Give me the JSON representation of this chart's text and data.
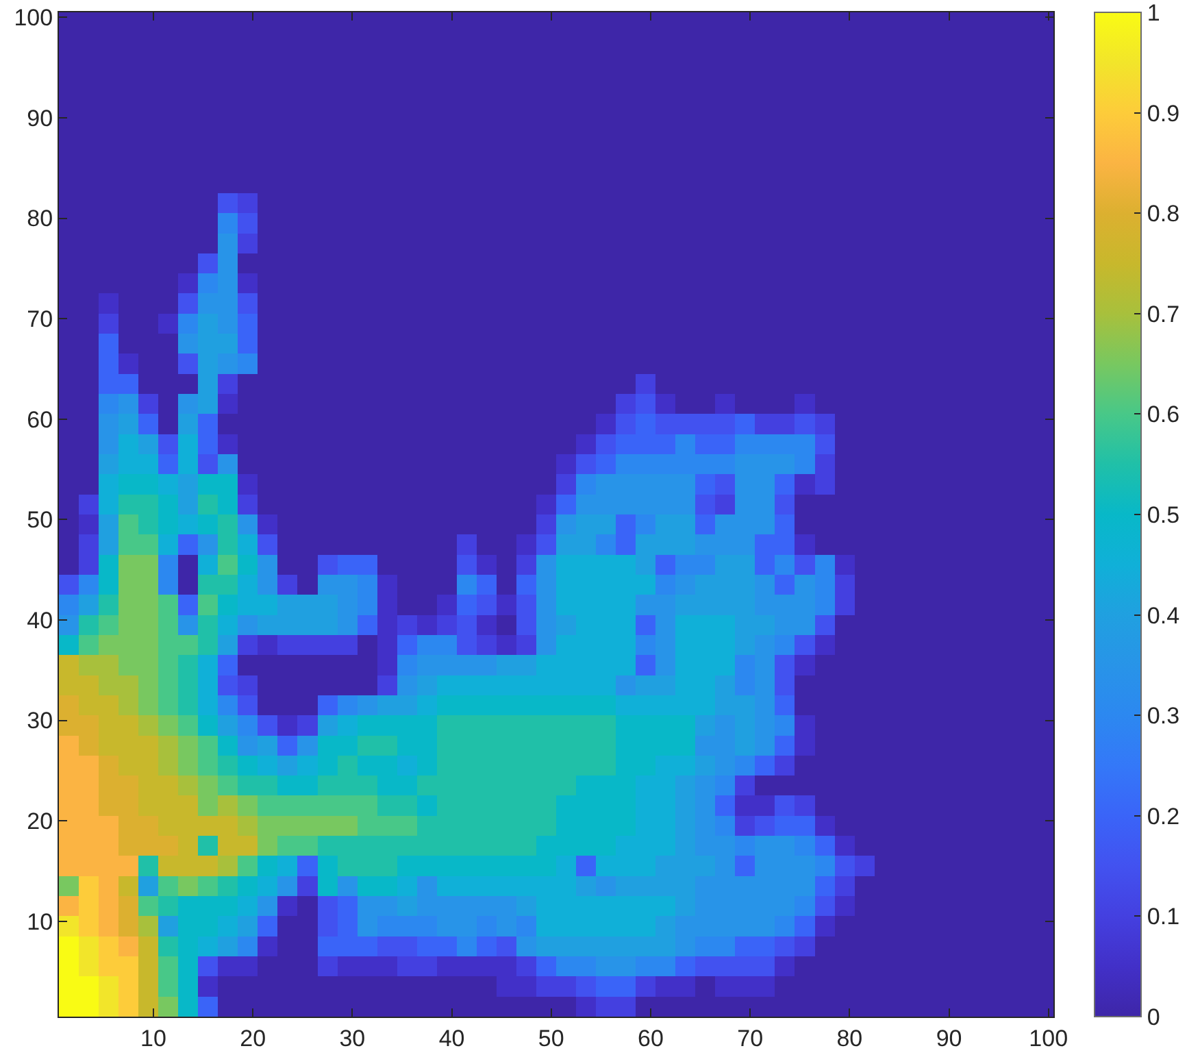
{
  "chart_data": {
    "type": "heatmap",
    "xlim": [
      0.5,
      100.5
    ],
    "ylim": [
      0.5,
      100.5
    ],
    "xticks": [
      10,
      20,
      30,
      40,
      50,
      60,
      70,
      80,
      90,
      100
    ],
    "yticks": [
      10,
      20,
      30,
      40,
      50,
      60,
      70,
      80,
      90,
      100
    ],
    "clim": [
      0,
      1
    ],
    "cticks": [
      0,
      0.1,
      0.2,
      0.3,
      0.4,
      0.5,
      0.6,
      0.7,
      0.8,
      0.9,
      1
    ],
    "cells": [
      [
        0,
        0,
        0,
        0,
        0,
        0,
        0,
        0,
        0,
        0,
        0,
        0,
        0,
        0,
        0,
        0,
        0,
        0,
        0,
        0,
        0,
        0,
        0,
        0,
        0,
        0,
        0,
        0,
        0,
        0,
        0,
        0,
        0,
        0,
        0,
        0,
        0,
        0,
        0,
        0,
        0,
        0,
        0,
        0,
        0,
        0,
        0,
        0,
        0,
        0
      ],
      [
        0,
        0,
        0,
        0,
        0,
        0,
        0,
        0,
        0,
        0,
        0,
        0,
        0,
        0,
        0,
        0,
        0,
        0,
        0,
        0,
        0,
        0,
        0,
        0,
        0,
        0,
        0,
        0,
        0,
        0,
        0,
        0,
        0,
        0,
        0,
        0,
        0,
        0,
        0,
        0,
        0,
        0,
        0,
        0,
        0,
        0,
        0,
        0,
        0,
        0
      ],
      [
        0,
        0,
        0,
        0,
        0,
        0,
        0,
        0,
        0,
        0,
        0,
        0,
        0,
        0,
        0,
        0,
        0,
        0,
        0,
        0,
        0,
        0,
        0,
        0,
        0,
        0,
        0,
        0,
        0,
        0,
        0,
        0,
        0,
        0,
        0,
        0,
        0,
        0,
        0,
        0,
        0,
        0,
        0,
        0,
        0,
        0,
        0,
        0,
        0,
        0
      ],
      [
        0,
        0,
        0,
        0,
        0,
        0,
        0,
        0,
        0,
        0,
        0,
        0,
        0,
        0,
        0,
        0,
        0,
        0,
        0,
        0,
        0,
        0,
        0,
        0,
        0,
        0,
        0,
        0,
        0,
        0,
        0,
        0,
        0,
        0,
        0,
        0,
        0,
        0,
        0,
        0,
        0,
        0,
        0,
        0,
        0,
        0,
        0,
        0,
        0,
        0
      ],
      [
        0,
        0,
        0,
        0,
        0,
        0,
        0,
        0,
        0,
        0,
        0,
        0,
        0,
        0,
        0,
        0,
        0,
        0,
        0,
        0,
        0,
        0,
        0,
        0,
        0,
        0,
        0,
        0,
        0,
        0,
        0,
        0,
        0,
        0,
        0,
        0,
        0,
        0,
        0,
        0,
        0,
        0,
        0,
        0,
        0,
        0,
        0,
        0,
        0,
        0
      ],
      [
        0,
        0,
        0,
        0,
        0,
        0,
        0,
        0,
        0,
        0,
        0,
        0,
        0,
        0,
        0,
        0,
        0,
        0,
        0,
        0,
        0,
        0,
        0,
        0,
        0,
        0,
        0,
        0,
        0,
        0,
        0,
        0,
        0,
        0,
        0,
        0,
        0,
        0,
        0,
        0,
        0,
        0,
        0,
        0,
        0,
        0,
        0,
        0,
        0,
        0
      ],
      [
        0,
        0,
        0,
        0,
        0,
        0,
        0,
        0,
        0,
        0,
        0,
        0,
        0,
        0,
        0,
        0,
        0,
        0,
        0,
        0,
        0,
        0,
        0,
        0,
        0,
        0,
        0,
        0,
        0,
        0,
        0,
        0,
        0,
        0,
        0,
        0,
        0,
        0,
        0,
        0,
        0,
        0,
        0,
        0,
        0,
        0,
        0,
        0,
        0,
        0
      ],
      [
        0,
        0,
        0,
        0,
        0,
        0,
        0,
        0,
        0,
        0,
        0,
        0,
        0,
        0,
        0,
        0,
        0,
        0,
        0,
        0,
        0,
        0,
        0,
        0,
        0,
        0,
        0,
        0,
        0,
        0,
        0,
        0,
        0,
        0,
        0,
        0,
        0,
        0,
        0,
        0,
        0,
        0,
        0,
        0,
        0,
        0,
        0,
        0,
        0,
        0
      ],
      [
        0,
        0,
        0,
        0,
        0,
        0,
        0,
        0,
        0,
        0,
        0,
        0,
        0,
        0,
        0,
        0,
        0,
        0,
        0,
        0,
        0,
        0,
        0,
        0,
        0,
        0,
        0,
        0,
        0,
        0,
        0,
        0,
        0,
        0,
        0,
        0,
        0,
        0,
        0,
        0,
        0,
        0,
        0,
        0,
        0,
        0,
        0,
        0,
        0,
        0
      ],
      [
        0,
        0,
        0,
        0,
        0,
        0,
        0,
        0,
        0.15,
        0.1,
        0,
        0,
        0,
        0,
        0,
        0,
        0,
        0,
        0,
        0,
        0,
        0,
        0,
        0,
        0,
        0,
        0,
        0,
        0,
        0,
        0,
        0,
        0,
        0,
        0,
        0,
        0,
        0,
        0,
        0,
        0,
        0,
        0,
        0,
        0,
        0,
        0,
        0,
        0,
        0
      ],
      [
        0,
        0,
        0,
        0,
        0,
        0,
        0,
        0,
        0.3,
        0.15,
        0,
        0,
        0,
        0,
        0,
        0,
        0,
        0,
        0,
        0,
        0,
        0,
        0,
        0,
        0,
        0,
        0,
        0,
        0,
        0,
        0,
        0,
        0,
        0,
        0,
        0,
        0,
        0,
        0,
        0,
        0,
        0,
        0,
        0,
        0,
        0,
        0,
        0,
        0,
        0
      ],
      [
        0,
        0,
        0,
        0,
        0,
        0,
        0,
        0,
        0.35,
        0.1,
        0,
        0,
        0,
        0,
        0,
        0,
        0,
        0,
        0,
        0,
        0,
        0,
        0,
        0,
        0,
        0,
        0,
        0,
        0,
        0,
        0,
        0,
        0,
        0,
        0,
        0,
        0,
        0,
        0,
        0,
        0,
        0,
        0,
        0,
        0,
        0,
        0,
        0,
        0,
        0
      ],
      [
        0,
        0,
        0,
        0,
        0,
        0,
        0,
        0.15,
        0.35,
        0,
        0,
        0,
        0,
        0,
        0,
        0,
        0,
        0,
        0,
        0,
        0,
        0,
        0,
        0,
        0,
        0,
        0,
        0,
        0,
        0,
        0,
        0,
        0,
        0,
        0,
        0,
        0,
        0,
        0,
        0,
        0,
        0,
        0,
        0,
        0,
        0,
        0,
        0,
        0,
        0
      ],
      [
        0,
        0,
        0,
        0,
        0,
        0,
        0.05,
        0.3,
        0.35,
        0.05,
        0,
        0,
        0,
        0,
        0,
        0,
        0,
        0,
        0,
        0,
        0,
        0,
        0,
        0,
        0,
        0,
        0,
        0,
        0,
        0,
        0,
        0,
        0,
        0,
        0,
        0,
        0,
        0,
        0,
        0,
        0,
        0,
        0,
        0,
        0,
        0,
        0,
        0,
        0,
        0
      ],
      [
        0,
        0,
        0.05,
        0,
        0,
        0,
        0.15,
        0.35,
        0.35,
        0.15,
        0,
        0,
        0,
        0,
        0,
        0,
        0,
        0,
        0,
        0,
        0,
        0,
        0,
        0,
        0,
        0,
        0,
        0,
        0,
        0,
        0,
        0,
        0,
        0,
        0,
        0,
        0,
        0,
        0,
        0,
        0,
        0,
        0,
        0,
        0,
        0,
        0,
        0,
        0,
        0
      ],
      [
        0,
        0,
        0.1,
        0,
        0,
        0.05,
        0.3,
        0.4,
        0.35,
        0.2,
        0,
        0,
        0,
        0,
        0,
        0,
        0,
        0,
        0,
        0,
        0,
        0,
        0,
        0,
        0,
        0,
        0,
        0,
        0,
        0,
        0,
        0,
        0,
        0,
        0,
        0,
        0,
        0,
        0,
        0,
        0,
        0,
        0,
        0,
        0,
        0,
        0,
        0,
        0,
        0
      ],
      [
        0,
        0,
        0.2,
        0,
        0,
        0,
        0.35,
        0.4,
        0.4,
        0.2,
        0,
        0,
        0,
        0,
        0,
        0,
        0,
        0,
        0,
        0,
        0,
        0,
        0,
        0,
        0,
        0,
        0,
        0,
        0,
        0,
        0,
        0,
        0,
        0,
        0,
        0,
        0,
        0,
        0,
        0,
        0,
        0,
        0,
        0,
        0,
        0,
        0,
        0,
        0,
        0
      ],
      [
        0,
        0,
        0.2,
        0.05,
        0,
        0,
        0.15,
        0.4,
        0.35,
        0.3,
        0,
        0,
        0,
        0,
        0,
        0,
        0,
        0,
        0,
        0,
        0,
        0,
        0,
        0,
        0,
        0,
        0,
        0,
        0,
        0,
        0,
        0,
        0,
        0,
        0,
        0,
        0,
        0,
        0,
        0,
        0,
        0,
        0,
        0,
        0,
        0,
        0,
        0,
        0,
        0
      ],
      [
        0,
        0,
        0.2,
        0.2,
        0,
        0,
        0,
        0.4,
        0.1,
        0,
        0,
        0,
        0,
        0,
        0,
        0,
        0,
        0,
        0,
        0,
        0,
        0,
        0,
        0,
        0,
        0,
        0,
        0,
        0,
        0.1,
        0,
        0,
        0,
        0,
        0,
        0,
        0,
        0,
        0,
        0,
        0,
        0,
        0,
        0,
        0,
        0,
        0,
        0,
        0,
        0
      ],
      [
        0,
        0,
        0.3,
        0.35,
        0.1,
        0,
        0.35,
        0.4,
        0.05,
        0,
        0,
        0,
        0,
        0,
        0,
        0,
        0,
        0,
        0,
        0,
        0,
        0,
        0,
        0,
        0,
        0,
        0,
        0,
        0.1,
        0.15,
        0.05,
        0,
        0,
        0.05,
        0,
        0,
        0,
        0.05,
        0,
        0,
        0,
        0,
        0,
        0,
        0,
        0,
        0,
        0,
        0,
        0
      ],
      [
        0,
        0,
        0.35,
        0.4,
        0.2,
        0,
        0.4,
        0.2,
        0,
        0,
        0,
        0,
        0,
        0,
        0,
        0,
        0,
        0,
        0,
        0,
        0,
        0,
        0,
        0,
        0,
        0,
        0,
        0.05,
        0.15,
        0.2,
        0.15,
        0.15,
        0.15,
        0.15,
        0.2,
        0.1,
        0.1,
        0.15,
        0.1,
        0,
        0,
        0,
        0,
        0,
        0,
        0,
        0,
        0,
        0,
        0
      ],
      [
        0,
        0,
        0.35,
        0.45,
        0.4,
        0.15,
        0.45,
        0.2,
        0.05,
        0,
        0,
        0,
        0,
        0,
        0,
        0,
        0,
        0,
        0,
        0,
        0,
        0,
        0,
        0,
        0,
        0,
        0.05,
        0.15,
        0.2,
        0.2,
        0.2,
        0.3,
        0.2,
        0.2,
        0.3,
        0.3,
        0.3,
        0.3,
        0.15,
        0,
        0,
        0,
        0,
        0,
        0,
        0,
        0,
        0,
        0,
        0
      ],
      [
        0,
        0,
        0.4,
        0.45,
        0.45,
        0.2,
        0.45,
        0.15,
        0.35,
        0,
        0,
        0,
        0,
        0,
        0,
        0,
        0,
        0,
        0,
        0,
        0,
        0,
        0,
        0,
        0,
        0.05,
        0.15,
        0.2,
        0.3,
        0.3,
        0.3,
        0.3,
        0.3,
        0.3,
        0.35,
        0.35,
        0.35,
        0.3,
        0.1,
        0,
        0,
        0,
        0,
        0,
        0,
        0,
        0,
        0,
        0,
        0
      ],
      [
        0,
        0,
        0.45,
        0.5,
        0.5,
        0.45,
        0.4,
        0.5,
        0.5,
        0.05,
        0,
        0,
        0,
        0,
        0,
        0,
        0,
        0,
        0,
        0,
        0,
        0,
        0,
        0,
        0,
        0.1,
        0.3,
        0.35,
        0.35,
        0.35,
        0.35,
        0.35,
        0.2,
        0.15,
        0.35,
        0.35,
        0.2,
        0.05,
        0.1,
        0,
        0,
        0,
        0,
        0,
        0,
        0,
        0,
        0,
        0,
        0
      ],
      [
        0,
        0.1,
        0.45,
        0.55,
        0.55,
        0.5,
        0.4,
        0.55,
        0.5,
        0.1,
        0,
        0,
        0,
        0,
        0,
        0,
        0,
        0,
        0,
        0,
        0,
        0,
        0,
        0,
        0.05,
        0.2,
        0.35,
        0.35,
        0.35,
        0.35,
        0.35,
        0.35,
        0.15,
        0.1,
        0.35,
        0.35,
        0.15,
        0,
        0,
        0,
        0,
        0,
        0,
        0,
        0,
        0,
        0,
        0,
        0,
        0
      ],
      [
        0,
        0.05,
        0.4,
        0.6,
        0.55,
        0.5,
        0.45,
        0.5,
        0.55,
        0.35,
        0.05,
        0,
        0,
        0,
        0,
        0,
        0,
        0,
        0,
        0,
        0,
        0,
        0,
        0,
        0.1,
        0.35,
        0.4,
        0.4,
        0.2,
        0.3,
        0.4,
        0.4,
        0.2,
        0.35,
        0.35,
        0.35,
        0.2,
        0,
        0,
        0,
        0,
        0,
        0,
        0,
        0,
        0,
        0,
        0,
        0,
        0
      ],
      [
        0,
        0.1,
        0.4,
        0.6,
        0.6,
        0.45,
        0.2,
        0.35,
        0.55,
        0.45,
        0.15,
        0,
        0,
        0,
        0,
        0,
        0,
        0,
        0,
        0,
        0.1,
        0,
        0,
        0.05,
        0.15,
        0.4,
        0.4,
        0.3,
        0.2,
        0.4,
        0.4,
        0.4,
        0.35,
        0.35,
        0.35,
        0.2,
        0.2,
        0.05,
        0,
        0,
        0,
        0,
        0,
        0,
        0,
        0,
        0,
        0,
        0,
        0
      ],
      [
        0,
        0.1,
        0.5,
        0.65,
        0.65,
        0.3,
        0,
        0.45,
        0.6,
        0.5,
        0.35,
        0,
        0,
        0.15,
        0.2,
        0.2,
        0,
        0,
        0,
        0,
        0.15,
        0.05,
        0,
        0.1,
        0.35,
        0.45,
        0.45,
        0.45,
        0.45,
        0.4,
        0.2,
        0.3,
        0.3,
        0.4,
        0.4,
        0.2,
        0.3,
        0.15,
        0.3,
        0.05,
        0,
        0,
        0,
        0,
        0,
        0,
        0,
        0,
        0,
        0
      ],
      [
        0.15,
        0.3,
        0.5,
        0.65,
        0.65,
        0.3,
        0,
        0.55,
        0.55,
        0.45,
        0.35,
        0.1,
        0,
        0.35,
        0.35,
        0.3,
        0.05,
        0,
        0,
        0,
        0.3,
        0.2,
        0,
        0.2,
        0.35,
        0.45,
        0.45,
        0.45,
        0.45,
        0.45,
        0.3,
        0.35,
        0.4,
        0.4,
        0.4,
        0.35,
        0.2,
        0.35,
        0.3,
        0.1,
        0,
        0,
        0,
        0,
        0,
        0,
        0,
        0,
        0,
        0
      ],
      [
        0.3,
        0.4,
        0.55,
        0.65,
        0.65,
        0.6,
        0.2,
        0.6,
        0.5,
        0.45,
        0.45,
        0.4,
        0.4,
        0.4,
        0.35,
        0.3,
        0.05,
        0,
        0,
        0.05,
        0.2,
        0.15,
        0.05,
        0.15,
        0.35,
        0.45,
        0.45,
        0.45,
        0.45,
        0.35,
        0.35,
        0.4,
        0.4,
        0.4,
        0.4,
        0.35,
        0.35,
        0.35,
        0.3,
        0.1,
        0,
        0,
        0,
        0,
        0,
        0,
        0,
        0,
        0,
        0
      ],
      [
        0.35,
        0.55,
        0.6,
        0.65,
        0.65,
        0.6,
        0.35,
        0.55,
        0.45,
        0.35,
        0.4,
        0.4,
        0.4,
        0.4,
        0.35,
        0.2,
        0.05,
        0.1,
        0.05,
        0.1,
        0.15,
        0.05,
        0,
        0.15,
        0.35,
        0.4,
        0.45,
        0.45,
        0.45,
        0.2,
        0.35,
        0.45,
        0.45,
        0.45,
        0.4,
        0.4,
        0.35,
        0.35,
        0.15,
        0,
        0,
        0,
        0,
        0,
        0,
        0,
        0,
        0,
        0,
        0
      ],
      [
        0.5,
        0.6,
        0.65,
        0.65,
        0.65,
        0.6,
        0.6,
        0.55,
        0.4,
        0.1,
        0.05,
        0.1,
        0.1,
        0.1,
        0.1,
        0,
        0.05,
        0.2,
        0.3,
        0.3,
        0.15,
        0.1,
        0.05,
        0.1,
        0.35,
        0.45,
        0.45,
        0.45,
        0.45,
        0.3,
        0.35,
        0.45,
        0.45,
        0.45,
        0.4,
        0.35,
        0.3,
        0.15,
        0.05,
        0,
        0,
        0,
        0,
        0,
        0,
        0,
        0,
        0,
        0,
        0
      ],
      [
        0.75,
        0.7,
        0.7,
        0.65,
        0.65,
        0.6,
        0.55,
        0.45,
        0.2,
        0,
        0,
        0,
        0,
        0,
        0,
        0,
        0.05,
        0.3,
        0.35,
        0.35,
        0.35,
        0.35,
        0.4,
        0.4,
        0.45,
        0.45,
        0.45,
        0.45,
        0.45,
        0.2,
        0.35,
        0.45,
        0.45,
        0.45,
        0.3,
        0.35,
        0.15,
        0.05,
        0,
        0,
        0,
        0,
        0,
        0,
        0,
        0,
        0,
        0,
        0,
        0
      ],
      [
        0.75,
        0.75,
        0.7,
        0.7,
        0.65,
        0.6,
        0.55,
        0.45,
        0.15,
        0.1,
        0,
        0,
        0,
        0,
        0,
        0,
        0.1,
        0.35,
        0.4,
        0.45,
        0.45,
        0.45,
        0.45,
        0.45,
        0.45,
        0.45,
        0.45,
        0.45,
        0.35,
        0.4,
        0.4,
        0.45,
        0.45,
        0.4,
        0.3,
        0.35,
        0.15,
        0,
        0,
        0,
        0,
        0,
        0,
        0,
        0,
        0,
        0,
        0,
        0,
        0
      ],
      [
        0.8,
        0.75,
        0.75,
        0.7,
        0.65,
        0.6,
        0.55,
        0.45,
        0.3,
        0.15,
        0,
        0,
        0,
        0.2,
        0.3,
        0.35,
        0.4,
        0.4,
        0.45,
        0.5,
        0.5,
        0.5,
        0.5,
        0.5,
        0.5,
        0.5,
        0.5,
        0.5,
        0.45,
        0.45,
        0.45,
        0.45,
        0.45,
        0.4,
        0.4,
        0.35,
        0.2,
        0,
        0,
        0,
        0,
        0,
        0,
        0,
        0,
        0,
        0,
        0,
        0,
        0
      ],
      [
        0.8,
        0.8,
        0.75,
        0.75,
        0.7,
        0.65,
        0.6,
        0.5,
        0.4,
        0.3,
        0.15,
        0.05,
        0.1,
        0.4,
        0.45,
        0.5,
        0.5,
        0.5,
        0.5,
        0.55,
        0.55,
        0.55,
        0.55,
        0.55,
        0.55,
        0.55,
        0.55,
        0.55,
        0.5,
        0.5,
        0.5,
        0.5,
        0.4,
        0.35,
        0.4,
        0.35,
        0.3,
        0.05,
        0,
        0,
        0,
        0,
        0,
        0,
        0,
        0,
        0,
        0,
        0,
        0
      ],
      [
        0.85,
        0.8,
        0.75,
        0.75,
        0.75,
        0.7,
        0.65,
        0.6,
        0.5,
        0.35,
        0.4,
        0.2,
        0.35,
        0.5,
        0.5,
        0.55,
        0.55,
        0.5,
        0.5,
        0.55,
        0.55,
        0.55,
        0.55,
        0.55,
        0.55,
        0.55,
        0.55,
        0.55,
        0.5,
        0.5,
        0.5,
        0.5,
        0.35,
        0.35,
        0.4,
        0.35,
        0.2,
        0.05,
        0,
        0,
        0,
        0,
        0,
        0,
        0,
        0,
        0,
        0,
        0,
        0
      ],
      [
        0.85,
        0.85,
        0.8,
        0.75,
        0.75,
        0.7,
        0.65,
        0.6,
        0.55,
        0.5,
        0.45,
        0.4,
        0.45,
        0.5,
        0.55,
        0.5,
        0.5,
        0.45,
        0.5,
        0.55,
        0.55,
        0.55,
        0.55,
        0.55,
        0.55,
        0.55,
        0.55,
        0.55,
        0.5,
        0.5,
        0.45,
        0.45,
        0.4,
        0.35,
        0.3,
        0.2,
        0.1,
        0,
        0,
        0,
        0,
        0,
        0,
        0,
        0,
        0,
        0,
        0,
        0,
        0
      ],
      [
        0.85,
        0.85,
        0.8,
        0.8,
        0.75,
        0.75,
        0.7,
        0.65,
        0.6,
        0.55,
        0.55,
        0.5,
        0.5,
        0.55,
        0.55,
        0.55,
        0.5,
        0.5,
        0.55,
        0.55,
        0.55,
        0.55,
        0.55,
        0.55,
        0.55,
        0.55,
        0.5,
        0.5,
        0.5,
        0.45,
        0.45,
        0.4,
        0.35,
        0.3,
        0.1,
        0,
        0,
        0,
        0,
        0,
        0,
        0,
        0,
        0,
        0,
        0,
        0,
        0,
        0,
        0
      ],
      [
        0.85,
        0.85,
        0.8,
        0.8,
        0.75,
        0.75,
        0.75,
        0.65,
        0.7,
        0.65,
        0.6,
        0.6,
        0.6,
        0.6,
        0.6,
        0.6,
        0.55,
        0.55,
        0.5,
        0.55,
        0.55,
        0.55,
        0.55,
        0.55,
        0.55,
        0.5,
        0.5,
        0.5,
        0.5,
        0.45,
        0.45,
        0.4,
        0.35,
        0.2,
        0.05,
        0.05,
        0.15,
        0.1,
        0,
        0,
        0,
        0,
        0,
        0,
        0,
        0,
        0,
        0,
        0,
        0
      ],
      [
        0.85,
        0.85,
        0.85,
        0.8,
        0.8,
        0.75,
        0.75,
        0.75,
        0.75,
        0.7,
        0.65,
        0.65,
        0.65,
        0.65,
        0.65,
        0.6,
        0.6,
        0.6,
        0.55,
        0.55,
        0.55,
        0.55,
        0.55,
        0.55,
        0.55,
        0.5,
        0.5,
        0.5,
        0.5,
        0.45,
        0.45,
        0.4,
        0.35,
        0.3,
        0.1,
        0.15,
        0.2,
        0.2,
        0.05,
        0,
        0,
        0,
        0,
        0,
        0,
        0,
        0,
        0,
        0,
        0
      ],
      [
        0.85,
        0.85,
        0.85,
        0.8,
        0.8,
        0.8,
        0.75,
        0.55,
        0.75,
        0.75,
        0.65,
        0.6,
        0.6,
        0.55,
        0.55,
        0.55,
        0.55,
        0.55,
        0.55,
        0.55,
        0.55,
        0.55,
        0.55,
        0.55,
        0.5,
        0.5,
        0.5,
        0.5,
        0.45,
        0.45,
        0.45,
        0.4,
        0.35,
        0.35,
        0.3,
        0.35,
        0.35,
        0.3,
        0.2,
        0.05,
        0,
        0,
        0,
        0,
        0,
        0,
        0,
        0,
        0,
        0
      ],
      [
        0.85,
        0.85,
        0.85,
        0.85,
        0.55,
        0.75,
        0.75,
        0.75,
        0.7,
        0.6,
        0.5,
        0.45,
        0.2,
        0.5,
        0.55,
        0.55,
        0.55,
        0.5,
        0.5,
        0.5,
        0.5,
        0.5,
        0.5,
        0.5,
        0.5,
        0.45,
        0.2,
        0.45,
        0.45,
        0.45,
        0.4,
        0.4,
        0.4,
        0.35,
        0.2,
        0.35,
        0.35,
        0.35,
        0.3,
        0.15,
        0.1,
        0,
        0,
        0,
        0,
        0,
        0,
        0,
        0,
        0
      ],
      [
        0.65,
        0.9,
        0.85,
        0.75,
        0.4,
        0.6,
        0.65,
        0.6,
        0.55,
        0.5,
        0.45,
        0.35,
        0.1,
        0.5,
        0.35,
        0.5,
        0.5,
        0.45,
        0.35,
        0.45,
        0.45,
        0.45,
        0.45,
        0.45,
        0.45,
        0.45,
        0.4,
        0.35,
        0.4,
        0.4,
        0.4,
        0.4,
        0.35,
        0.35,
        0.35,
        0.35,
        0.35,
        0.35,
        0.2,
        0.1,
        0,
        0,
        0,
        0,
        0,
        0,
        0,
        0,
        0,
        0
      ],
      [
        0.85,
        0.9,
        0.85,
        0.8,
        0.6,
        0.55,
        0.5,
        0.5,
        0.5,
        0.45,
        0.35,
        0.05,
        0,
        0.15,
        0.2,
        0.35,
        0.35,
        0.4,
        0.35,
        0.35,
        0.35,
        0.35,
        0.35,
        0.4,
        0.45,
        0.45,
        0.45,
        0.45,
        0.45,
        0.45,
        0.45,
        0.4,
        0.35,
        0.35,
        0.35,
        0.35,
        0.35,
        0.3,
        0.15,
        0.05,
        0,
        0,
        0,
        0,
        0,
        0,
        0,
        0,
        0,
        0
      ],
      [
        0.95,
        0.9,
        0.85,
        0.8,
        0.7,
        0.4,
        0.5,
        0.5,
        0.45,
        0.4,
        0.2,
        0,
        0,
        0.15,
        0.2,
        0.35,
        0.3,
        0.3,
        0.3,
        0.35,
        0.35,
        0.3,
        0.35,
        0.3,
        0.45,
        0.45,
        0.45,
        0.45,
        0.45,
        0.45,
        0.4,
        0.35,
        0.35,
        0.35,
        0.35,
        0.35,
        0.3,
        0.2,
        0.05,
        0,
        0,
        0,
        0,
        0,
        0,
        0,
        0,
        0,
        0,
        0
      ],
      [
        1,
        0.95,
        0.9,
        0.85,
        0.75,
        0.55,
        0.5,
        0.45,
        0.4,
        0.3,
        0.05,
        0,
        0,
        0.2,
        0.2,
        0.2,
        0.15,
        0.15,
        0.2,
        0.2,
        0.3,
        0.2,
        0.15,
        0.35,
        0.4,
        0.4,
        0.4,
        0.4,
        0.4,
        0.4,
        0.4,
        0.35,
        0.3,
        0.3,
        0.2,
        0.2,
        0.15,
        0.1,
        0,
        0,
        0,
        0,
        0,
        0,
        0,
        0,
        0,
        0,
        0,
        0
      ],
      [
        1,
        0.95,
        0.9,
        0.9,
        0.75,
        0.6,
        0.5,
        0.15,
        0.05,
        0.05,
        0,
        0,
        0,
        0.1,
        0.05,
        0.05,
        0.05,
        0.1,
        0.1,
        0.05,
        0.05,
        0.05,
        0.05,
        0.1,
        0.2,
        0.3,
        0.3,
        0.35,
        0.35,
        0.3,
        0.3,
        0.2,
        0.15,
        0.15,
        0.15,
        0.15,
        0.05,
        0,
        0,
        0,
        0,
        0,
        0,
        0,
        0,
        0,
        0,
        0,
        0,
        0
      ],
      [
        1,
        1,
        0.95,
        0.9,
        0.75,
        0.6,
        0.5,
        0.05,
        0,
        0,
        0,
        0,
        0,
        0,
        0,
        0,
        0,
        0,
        0,
        0,
        0,
        0,
        0.05,
        0.05,
        0.1,
        0.1,
        0.15,
        0.2,
        0.2,
        0.1,
        0.05,
        0.05,
        0,
        0.05,
        0.05,
        0.05,
        0,
        0,
        0,
        0,
        0,
        0,
        0,
        0,
        0,
        0,
        0,
        0,
        0,
        0
      ],
      [
        1,
        1,
        0.95,
        0.9,
        0.75,
        0.65,
        0.5,
        0.2,
        0,
        0,
        0,
        0,
        0,
        0,
        0,
        0,
        0,
        0,
        0,
        0,
        0,
        0,
        0,
        0,
        0,
        0,
        0.05,
        0.1,
        0.1,
        0,
        0,
        0,
        0,
        0,
        0,
        0,
        0,
        0,
        0,
        0,
        0,
        0,
        0,
        0,
        0,
        0,
        0,
        0,
        0,
        0
      ]
    ]
  }
}
